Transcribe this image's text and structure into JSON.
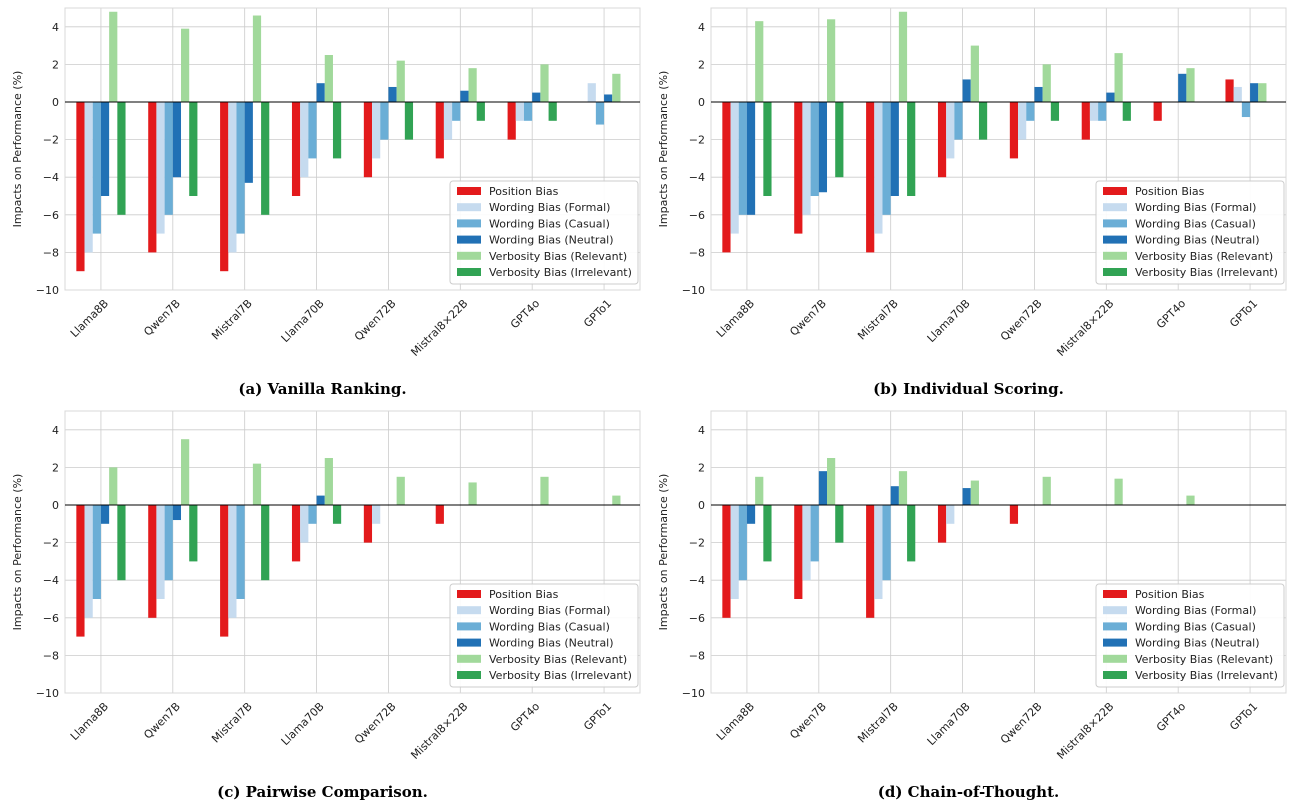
{
  "chart_data": [
    {
      "type": "bar",
      "caption": "(a) Vanilla Ranking.",
      "ylabel": "Impacts on Performance (%)",
      "ylim": [
        -10,
        5
      ],
      "yticks": [
        -10,
        -8,
        -6,
        -4,
        -2,
        0,
        2,
        4
      ],
      "grid": true,
      "legend_position": "lower-right",
      "categories": [
        "Llama8B",
        "Qwen7B",
        "Mistral7B",
        "Llama70B",
        "Qwen72B",
        "Mistral8×22B",
        "GPT4o",
        "GPTo1"
      ],
      "series": [
        {
          "name": "Position Bias",
          "color": "#e31a1c",
          "values": [
            -9,
            -8,
            -9,
            -5,
            -4,
            -3,
            -2,
            0
          ]
        },
        {
          "name": "Wording Bias (Formal)",
          "color": "#c6dbef",
          "values": [
            -8,
            -7,
            -8,
            -4,
            -3,
            -2,
            -1,
            1
          ]
        },
        {
          "name": "Wording Bias (Casual)",
          "color": "#6baed6",
          "values": [
            -7,
            -6,
            -7,
            -3,
            -2,
            -1,
            -1,
            -1.2
          ]
        },
        {
          "name": "Wording Bias (Neutral)",
          "color": "#2171b5",
          "values": [
            -5,
            -4,
            -4.3,
            1,
            0.8,
            0.6,
            0.5,
            0.4
          ]
        },
        {
          "name": "Verbosity Bias (Relevant)",
          "color": "#a1d99b",
          "values": [
            4.8,
            3.9,
            4.6,
            2.5,
            2.2,
            1.8,
            2,
            1.5
          ]
        },
        {
          "name": "Verbosity Bias (Irrelevant)",
          "color": "#31a354",
          "values": [
            -6,
            -5,
            -6,
            -3,
            -2,
            -1,
            -1,
            0
          ]
        }
      ]
    },
    {
      "type": "bar",
      "caption": "(b) Individual Scoring.",
      "ylabel": "Impacts on Performance (%)",
      "ylim": [
        -10,
        5
      ],
      "yticks": [
        -10,
        -8,
        -6,
        -4,
        -2,
        0,
        2,
        4
      ],
      "grid": true,
      "legend_position": "lower-right",
      "categories": [
        "Llama8B",
        "Qwen7B",
        "Mistral7B",
        "Llama70B",
        "Qwen72B",
        "Mistral8×22B",
        "GPT4o",
        "GPTo1"
      ],
      "series": [
        {
          "name": "Position Bias",
          "color": "#e31a1c",
          "values": [
            -8,
            -7,
            -8,
            -4,
            -3,
            -2,
            -1,
            1.2
          ]
        },
        {
          "name": "Wording Bias (Formal)",
          "color": "#c6dbef",
          "values": [
            -7,
            -6,
            -7,
            -3,
            -2,
            -1,
            0,
            0.8
          ]
        },
        {
          "name": "Wording Bias (Casual)",
          "color": "#6baed6",
          "values": [
            -6,
            -5,
            -6,
            -2,
            -1,
            -1,
            0,
            -0.8
          ]
        },
        {
          "name": "Wording Bias (Neutral)",
          "color": "#2171b5",
          "values": [
            -6,
            -4.8,
            -5,
            1.2,
            0.8,
            0.5,
            1.5,
            1
          ]
        },
        {
          "name": "Verbosity Bias (Relevant)",
          "color": "#a1d99b",
          "values": [
            4.3,
            4.4,
            4.8,
            3,
            2,
            2.6,
            1.8,
            1
          ]
        },
        {
          "name": "Verbosity Bias (Irrelevant)",
          "color": "#31a354",
          "values": [
            -5,
            -4,
            -5,
            -2,
            -1,
            -1,
            0,
            0
          ]
        }
      ]
    },
    {
      "type": "bar",
      "caption": "(c) Pairwise Comparison.",
      "ylabel": "Impacts on Performance (%)",
      "ylim": [
        -10,
        5
      ],
      "yticks": [
        -10,
        -8,
        -6,
        -4,
        -2,
        0,
        2,
        4
      ],
      "grid": true,
      "legend_position": "lower-right",
      "categories": [
        "Llama8B",
        "Qwen7B",
        "Mistral7B",
        "Llama70B",
        "Qwen72B",
        "Mistral8×22B",
        "GPT4o",
        "GPTo1"
      ],
      "series": [
        {
          "name": "Position Bias",
          "color": "#e31a1c",
          "values": [
            -7,
            -6,
            -7,
            -3,
            -2,
            -1,
            0,
            0
          ]
        },
        {
          "name": "Wording Bias (Formal)",
          "color": "#c6dbef",
          "values": [
            -6,
            -5,
            -6,
            -2,
            -1,
            0,
            0,
            0
          ]
        },
        {
          "name": "Wording Bias (Casual)",
          "color": "#6baed6",
          "values": [
            -5,
            -4,
            -5,
            -1,
            0,
            0,
            0,
            0
          ]
        },
        {
          "name": "Wording Bias (Neutral)",
          "color": "#2171b5",
          "values": [
            -1,
            -0.8,
            0,
            0.5,
            0,
            0,
            0,
            0
          ]
        },
        {
          "name": "Verbosity Bias (Relevant)",
          "color": "#a1d99b",
          "values": [
            2,
            3.5,
            2.2,
            2.5,
            1.5,
            1.2,
            1.5,
            0.5
          ]
        },
        {
          "name": "Verbosity Bias (Irrelevant)",
          "color": "#31a354",
          "values": [
            -4,
            -3,
            -4,
            -1,
            0,
            0,
            0,
            0
          ]
        }
      ]
    },
    {
      "type": "bar",
      "caption": "(d) Chain-of-Thought.",
      "ylabel": "Impacts on Performance (%)",
      "ylim": [
        -10,
        5
      ],
      "yticks": [
        -10,
        -8,
        -6,
        -4,
        -2,
        0,
        2,
        4
      ],
      "grid": true,
      "legend_position": "lower-right",
      "categories": [
        "Llama8B",
        "Qwen7B",
        "Mistral7B",
        "Llama70B",
        "Qwen72B",
        "Mistral8×22B",
        "GPT4o",
        "GPTo1"
      ],
      "series": [
        {
          "name": "Position Bias",
          "color": "#e31a1c",
          "values": [
            -6,
            -5,
            -6,
            -2,
            -1,
            0,
            0,
            0
          ]
        },
        {
          "name": "Wording Bias (Formal)",
          "color": "#c6dbef",
          "values": [
            -5,
            -4,
            -5,
            -1,
            0,
            0,
            0,
            0
          ]
        },
        {
          "name": "Wording Bias (Casual)",
          "color": "#6baed6",
          "values": [
            -4,
            -3,
            -4,
            0,
            0,
            0,
            0,
            0
          ]
        },
        {
          "name": "Wording Bias (Neutral)",
          "color": "#2171b5",
          "values": [
            -1,
            1.8,
            1,
            0.9,
            0,
            0,
            0,
            0
          ]
        },
        {
          "name": "Verbosity Bias (Relevant)",
          "color": "#a1d99b",
          "values": [
            1.5,
            2.5,
            1.8,
            1.3,
            1.5,
            1.4,
            0.5,
            0
          ]
        },
        {
          "name": "Verbosity Bias (Irrelevant)",
          "color": "#31a354",
          "values": [
            -3,
            -2,
            -3,
            0,
            0,
            0,
            0,
            0
          ]
        }
      ]
    }
  ]
}
